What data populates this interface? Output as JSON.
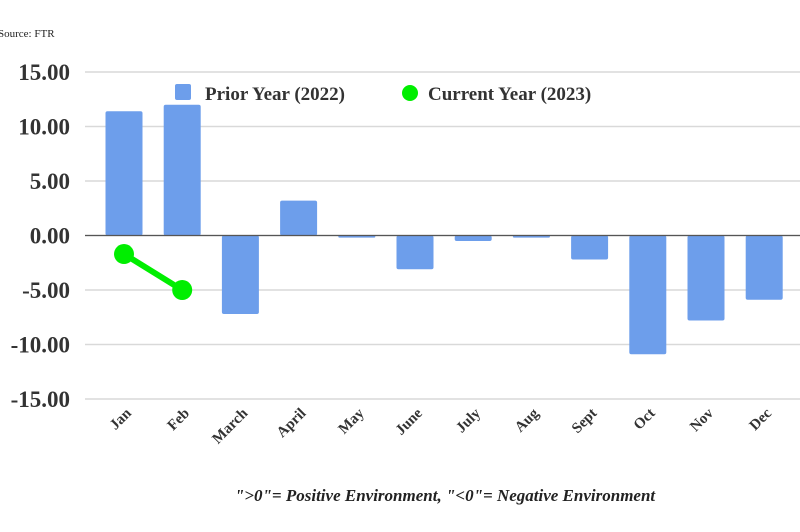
{
  "chart_data": {
    "type": "bar",
    "source": "Source: FTR",
    "categories": [
      "Jan",
      "Feb",
      "March",
      "April",
      "May",
      "June",
      "July",
      "Aug",
      "Sept",
      "Oct",
      "Nov",
      "Dec"
    ],
    "series": [
      {
        "name": "Prior Year (2022)",
        "kind": "bar",
        "color": "#6d9eeb",
        "values": [
          11.4,
          12.0,
          -7.2,
          3.2,
          -0.2,
          -3.1,
          -0.5,
          -0.2,
          -2.2,
          -10.9,
          -7.8,
          -5.9
        ]
      },
      {
        "name": "Current Year (2023)",
        "kind": "line",
        "color": "#00ee00",
        "values": [
          -1.7,
          -5.0,
          null,
          null,
          null,
          null,
          null,
          null,
          null,
          null,
          null,
          null
        ]
      }
    ],
    "ylim": [
      -15,
      15
    ],
    "yticks": [
      "15.00",
      "10.00",
      "5.00",
      "0.00",
      "-5.00",
      "-10.00",
      "-15.00"
    ],
    "grid": true,
    "legend_position": "top",
    "note": "\">0\"= Positive Environment, \"<0\"= Negative Environment"
  }
}
